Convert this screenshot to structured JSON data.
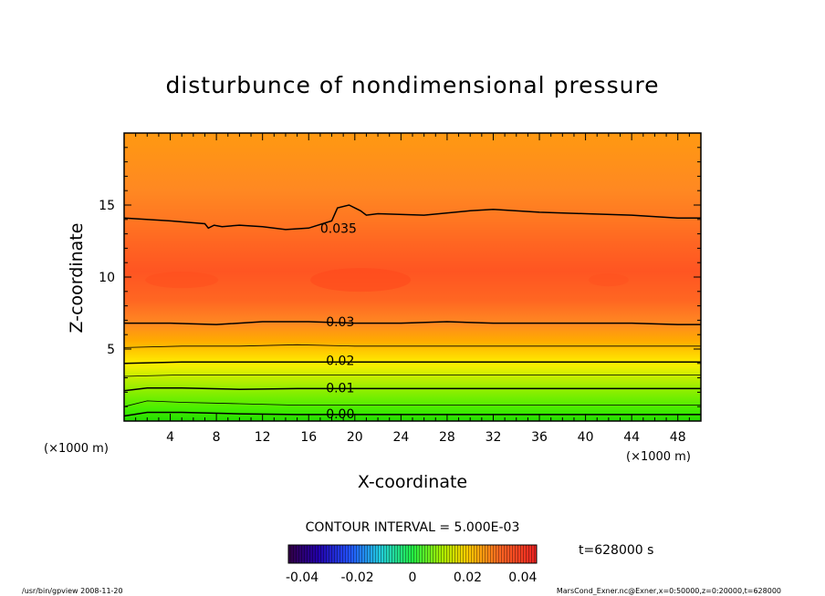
{
  "chart_data": {
    "type": "contour",
    "title": "disturbunce of nondimensional pressure",
    "xlabel": "X-coordinate",
    "ylabel": "Z-coordinate",
    "x_unit": "(×1000 m)",
    "y_unit": "(×1000 m)",
    "xlim": [
      0,
      50
    ],
    "ylim": [
      0,
      20
    ],
    "x_ticks": [
      4,
      8,
      12,
      16,
      20,
      24,
      28,
      32,
      36,
      40,
      44,
      48
    ],
    "y_ticks": [
      5,
      10,
      15
    ],
    "contour_interval_text": "CONTOUR INTERVAL = 5.000E-03",
    "time_text": "t=628000 s",
    "colorbar": {
      "ticks": [
        "-0.04",
        "-0.02",
        "0",
        "0.02",
        "0.04"
      ],
      "range": [
        -0.045,
        0.045
      ]
    },
    "contour_labels": [
      {
        "text": "0.035",
        "x": 17,
        "z": 13.4
      },
      {
        "text": "0.03",
        "x": 17.5,
        "z": 6.9
      },
      {
        "text": "0.02",
        "x": 17.5,
        "z": 4.2
      },
      {
        "text": "0.01",
        "x": 17.5,
        "z": 2.3
      },
      {
        "text": "0.00",
        "x": 17.5,
        "z": 0.5
      }
    ],
    "contours": [
      {
        "level": 0.0,
        "labeled": true,
        "points": [
          [
            0,
            0.35
          ],
          [
            2,
            0.6
          ],
          [
            5,
            0.6
          ],
          [
            10,
            0.5
          ],
          [
            15,
            0.45
          ],
          [
            20,
            0.45
          ],
          [
            25,
            0.45
          ],
          [
            30,
            0.45
          ],
          [
            35,
            0.45
          ],
          [
            40,
            0.45
          ],
          [
            45,
            0.45
          ],
          [
            50,
            0.45
          ]
        ]
      },
      {
        "level": 0.005,
        "labeled": false,
        "points": [
          [
            0,
            1.0
          ],
          [
            2,
            1.4
          ],
          [
            5,
            1.3
          ],
          [
            10,
            1.2
          ],
          [
            15,
            1.1
          ],
          [
            20,
            1.1
          ],
          [
            25,
            1.1
          ],
          [
            30,
            1.1
          ],
          [
            35,
            1.1
          ],
          [
            40,
            1.1
          ],
          [
            45,
            1.1
          ],
          [
            50,
            1.1
          ]
        ]
      },
      {
        "level": 0.01,
        "labeled": true,
        "points": [
          [
            0,
            2.1
          ],
          [
            2,
            2.3
          ],
          [
            5,
            2.3
          ],
          [
            10,
            2.2
          ],
          [
            15,
            2.25
          ],
          [
            20,
            2.25
          ],
          [
            25,
            2.25
          ],
          [
            30,
            2.25
          ],
          [
            35,
            2.25
          ],
          [
            40,
            2.25
          ],
          [
            45,
            2.25
          ],
          [
            50,
            2.25
          ]
        ]
      },
      {
        "level": 0.015,
        "labeled": false,
        "points": [
          [
            0,
            3.1
          ],
          [
            5,
            3.2
          ],
          [
            10,
            3.2
          ],
          [
            15,
            3.2
          ],
          [
            20,
            3.2
          ],
          [
            25,
            3.2
          ],
          [
            30,
            3.2
          ],
          [
            35,
            3.2
          ],
          [
            40,
            3.2
          ],
          [
            45,
            3.2
          ],
          [
            50,
            3.2
          ]
        ]
      },
      {
        "level": 0.02,
        "labeled": true,
        "points": [
          [
            0,
            4.0
          ],
          [
            5,
            4.1
          ],
          [
            10,
            4.1
          ],
          [
            15,
            4.1
          ],
          [
            20,
            4.1
          ],
          [
            25,
            4.1
          ],
          [
            30,
            4.1
          ],
          [
            35,
            4.1
          ],
          [
            40,
            4.1
          ],
          [
            45,
            4.1
          ],
          [
            50,
            4.1
          ]
        ]
      },
      {
        "level": 0.025,
        "labeled": false,
        "points": [
          [
            0,
            5.1
          ],
          [
            5,
            5.2
          ],
          [
            10,
            5.2
          ],
          [
            15,
            5.3
          ],
          [
            20,
            5.2
          ],
          [
            25,
            5.2
          ],
          [
            30,
            5.2
          ],
          [
            35,
            5.2
          ],
          [
            40,
            5.2
          ],
          [
            45,
            5.2
          ],
          [
            50,
            5.2
          ]
        ]
      },
      {
        "level": 0.03,
        "labeled": true,
        "points": [
          [
            0,
            6.8
          ],
          [
            4,
            6.8
          ],
          [
            8,
            6.7
          ],
          [
            12,
            6.9
          ],
          [
            16,
            6.9
          ],
          [
            20,
            6.8
          ],
          [
            24,
            6.8
          ],
          [
            28,
            6.9
          ],
          [
            32,
            6.8
          ],
          [
            36,
            6.8
          ],
          [
            40,
            6.8
          ],
          [
            44,
            6.8
          ],
          [
            48,
            6.7
          ],
          [
            50,
            6.7
          ]
        ]
      },
      {
        "level": 0.035,
        "labeled": true,
        "points": [
          [
            0,
            14.1
          ],
          [
            4,
            13.9
          ],
          [
            7,
            13.7
          ],
          [
            7.3,
            13.4
          ],
          [
            7.8,
            13.6
          ],
          [
            8.5,
            13.5
          ],
          [
            10,
            13.6
          ],
          [
            12,
            13.5
          ],
          [
            14,
            13.3
          ],
          [
            16,
            13.4
          ],
          [
            18,
            13.9
          ],
          [
            18.5,
            14.8
          ],
          [
            19.5,
            15.0
          ],
          [
            20.5,
            14.6
          ],
          [
            21,
            14.3
          ],
          [
            22,
            14.4
          ],
          [
            26,
            14.3
          ],
          [
            30,
            14.6
          ],
          [
            32,
            14.7
          ],
          [
            36,
            14.5
          ],
          [
            40,
            14.4
          ],
          [
            44,
            14.3
          ],
          [
            48,
            14.1
          ],
          [
            50,
            14.1
          ]
        ]
      }
    ]
  },
  "footer": {
    "left": "/usr/bin/gpview   2008-11-20",
    "right": "MarsCond_Exner.nc@Exner,x=0:50000,z=0:20000,t=628000"
  }
}
